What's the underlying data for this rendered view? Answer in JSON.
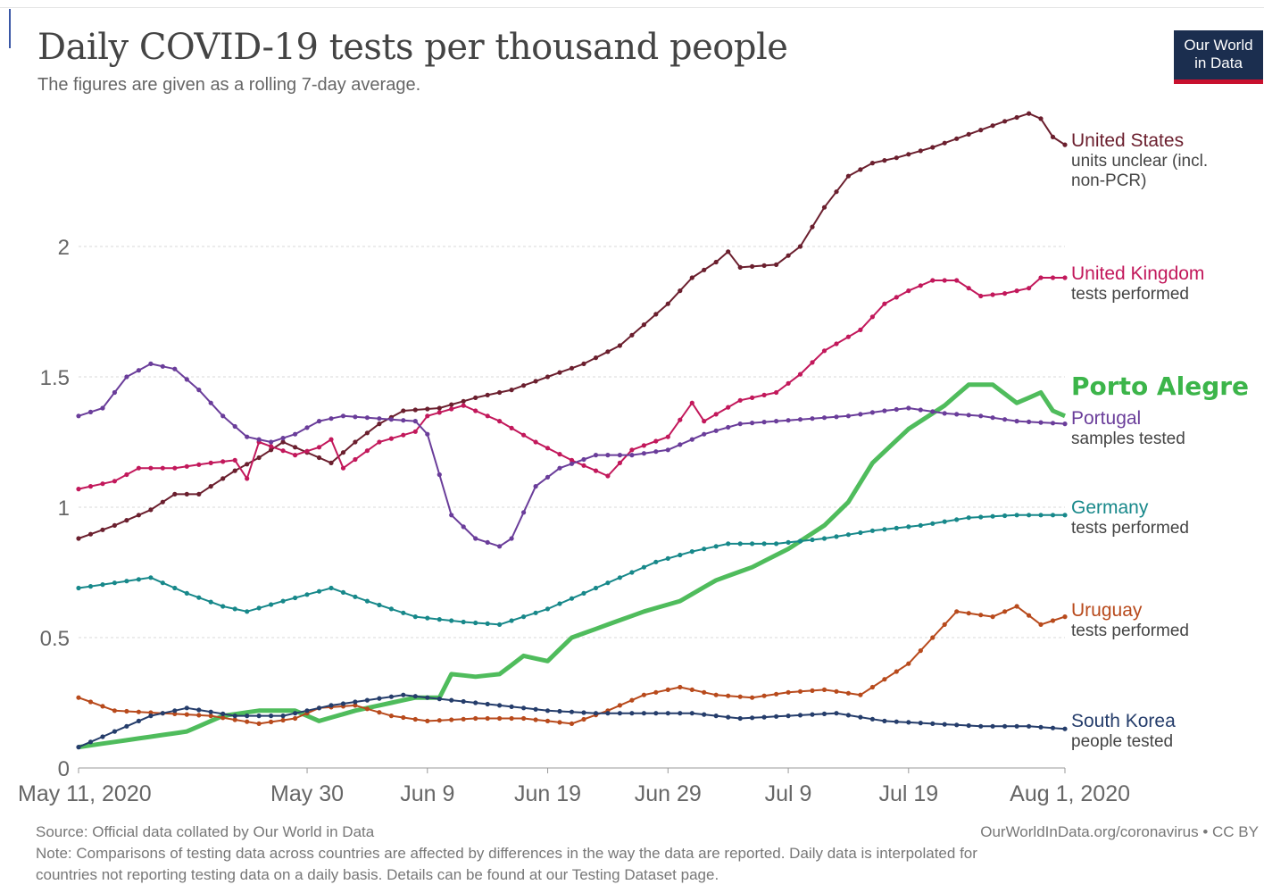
{
  "header": {
    "title": "Daily COVID-19 tests per thousand people",
    "subtitle": "The figures are given as a rolling 7-day average.",
    "logo_line1": "Our World",
    "logo_line2": "in Data"
  },
  "footer": {
    "source": "Source: Official data collated by Our World in Data",
    "url": "OurWorldInData.org/coronavirus • CC BY",
    "note_line1": "Note: Comparisons of testing data across countries are affected by differences in the way the data are reported. Daily data is interpolated for",
    "note_line2": "countries not reporting testing data on a daily basis. Details can be found at our Testing Dataset page."
  },
  "chart_data": {
    "type": "line",
    "title": "Daily COVID-19 tests per thousand people",
    "subtitle": "The figures are given as a rolling 7-day average.",
    "x_axis": {
      "start": "2020-05-11",
      "end": "2020-08-01",
      "tick_dates": [
        "2020-05-11",
        "2020-05-30",
        "2020-06-09",
        "2020-06-19",
        "2020-06-29",
        "2020-07-09",
        "2020-07-19",
        "2020-08-01"
      ],
      "tick_labels": [
        "May 11, 2020",
        "May 30",
        "Jun 9",
        "Jun 19",
        "Jun 29",
        "Jul 9",
        "Jul 19",
        "Aug 1, 2020"
      ]
    },
    "y_axis": {
      "ylim": [
        0,
        2.45
      ],
      "ticks": [
        0,
        0.5,
        1,
        1.5,
        2
      ],
      "tick_labels": [
        "0",
        "0.5",
        "1",
        "1.5",
        "2"
      ],
      "grid": "dotted horizontal"
    },
    "series": [
      {
        "name": "United States",
        "sublabel": "units unclear (incl. non-PCR)",
        "color": "#6b1f2e",
        "points": [
          [
            "2020-05-11",
            0.88
          ],
          [
            "2020-05-14",
            0.93
          ],
          [
            "2020-05-17",
            0.99
          ],
          [
            "2020-05-19",
            1.05
          ],
          [
            "2020-05-21",
            1.05
          ],
          [
            "2020-05-24",
            1.14
          ],
          [
            "2020-05-26",
            1.19
          ],
          [
            "2020-05-28",
            1.25
          ],
          [
            "2020-05-30",
            1.21
          ],
          [
            "2020-06-01",
            1.17
          ],
          [
            "2020-06-03",
            1.25
          ],
          [
            "2020-06-05",
            1.32
          ],
          [
            "2020-06-07",
            1.37
          ],
          [
            "2020-06-10",
            1.38
          ],
          [
            "2020-06-13",
            1.42
          ],
          [
            "2020-06-16",
            1.45
          ],
          [
            "2020-06-19",
            1.5
          ],
          [
            "2020-06-22",
            1.55
          ],
          [
            "2020-06-25",
            1.62
          ],
          [
            "2020-06-27",
            1.7
          ],
          [
            "2020-06-29",
            1.78
          ],
          [
            "2020-07-01",
            1.88
          ],
          [
            "2020-07-03",
            1.94
          ],
          [
            "2020-07-04",
            1.98
          ],
          [
            "2020-07-05",
            1.92
          ],
          [
            "2020-07-08",
            1.93
          ],
          [
            "2020-07-10",
            2.0
          ],
          [
            "2020-07-12",
            2.15
          ],
          [
            "2020-07-14",
            2.27
          ],
          [
            "2020-07-16",
            2.32
          ],
          [
            "2020-07-18",
            2.34
          ],
          [
            "2020-07-21",
            2.38
          ],
          [
            "2020-07-24",
            2.43
          ],
          [
            "2020-07-27",
            2.48
          ],
          [
            "2020-07-29",
            2.51
          ],
          [
            "2020-07-30",
            2.49
          ],
          [
            "2020-07-31",
            2.42
          ],
          [
            "2020-08-01",
            2.39
          ]
        ]
      },
      {
        "name": "United Kingdom",
        "sublabel": "tests performed",
        "color": "#c2185b",
        "points": [
          [
            "2020-05-11",
            1.07
          ],
          [
            "2020-05-14",
            1.1
          ],
          [
            "2020-05-16",
            1.15
          ],
          [
            "2020-05-19",
            1.15
          ],
          [
            "2020-05-22",
            1.17
          ],
          [
            "2020-05-24",
            1.18
          ],
          [
            "2020-05-25",
            1.11
          ],
          [
            "2020-05-26",
            1.25
          ],
          [
            "2020-05-29",
            1.2
          ],
          [
            "2020-05-31",
            1.23
          ],
          [
            "2020-06-01",
            1.26
          ],
          [
            "2020-06-02",
            1.15
          ],
          [
            "2020-06-05",
            1.25
          ],
          [
            "2020-06-08",
            1.29
          ],
          [
            "2020-06-09",
            1.35
          ],
          [
            "2020-06-12",
            1.39
          ],
          [
            "2020-06-15",
            1.33
          ],
          [
            "2020-06-18",
            1.25
          ],
          [
            "2020-06-21",
            1.18
          ],
          [
            "2020-06-24",
            1.12
          ],
          [
            "2020-06-26",
            1.22
          ],
          [
            "2020-06-29",
            1.27
          ],
          [
            "2020-07-01",
            1.4
          ],
          [
            "2020-07-02",
            1.33
          ],
          [
            "2020-07-05",
            1.41
          ],
          [
            "2020-07-08",
            1.44
          ],
          [
            "2020-07-10",
            1.51
          ],
          [
            "2020-07-12",
            1.6
          ],
          [
            "2020-07-15",
            1.68
          ],
          [
            "2020-07-17",
            1.78
          ],
          [
            "2020-07-19",
            1.83
          ],
          [
            "2020-07-21",
            1.87
          ],
          [
            "2020-07-23",
            1.87
          ],
          [
            "2020-07-25",
            1.81
          ],
          [
            "2020-07-27",
            1.82
          ],
          [
            "2020-07-29",
            1.84
          ],
          [
            "2020-07-30",
            1.88
          ],
          [
            "2020-08-01",
            1.88
          ]
        ]
      },
      {
        "name": "Porto Alegre",
        "sublabel": "",
        "color": "#3cb54a",
        "points": [
          [
            "2020-05-11",
            0.08
          ],
          [
            "2020-05-14",
            0.1
          ],
          [
            "2020-05-17",
            0.12
          ],
          [
            "2020-05-20",
            0.14
          ],
          [
            "2020-05-23",
            0.2
          ],
          [
            "2020-05-26",
            0.22
          ],
          [
            "2020-05-29",
            0.22
          ],
          [
            "2020-05-31",
            0.18
          ],
          [
            "2020-06-03",
            0.22
          ],
          [
            "2020-06-06",
            0.25
          ],
          [
            "2020-06-08",
            0.27
          ],
          [
            "2020-06-10",
            0.27
          ],
          [
            "2020-06-11",
            0.36
          ],
          [
            "2020-06-13",
            0.35
          ],
          [
            "2020-06-15",
            0.36
          ],
          [
            "2020-06-17",
            0.43
          ],
          [
            "2020-06-19",
            0.41
          ],
          [
            "2020-06-21",
            0.5
          ],
          [
            "2020-06-24",
            0.55
          ],
          [
            "2020-06-27",
            0.6
          ],
          [
            "2020-06-30",
            0.64
          ],
          [
            "2020-07-03",
            0.72
          ],
          [
            "2020-07-06",
            0.77
          ],
          [
            "2020-07-09",
            0.84
          ],
          [
            "2020-07-12",
            0.93
          ],
          [
            "2020-07-14",
            1.02
          ],
          [
            "2020-07-16",
            1.17
          ],
          [
            "2020-07-19",
            1.3
          ],
          [
            "2020-07-22",
            1.39
          ],
          [
            "2020-07-24",
            1.47
          ],
          [
            "2020-07-26",
            1.47
          ],
          [
            "2020-07-28",
            1.4
          ],
          [
            "2020-07-30",
            1.44
          ],
          [
            "2020-07-31",
            1.37
          ],
          [
            "2020-08-01",
            1.35
          ]
        ]
      },
      {
        "name": "Portugal",
        "sublabel": "samples tested",
        "color": "#6a3d9a",
        "points": [
          [
            "2020-05-11",
            1.35
          ],
          [
            "2020-05-13",
            1.38
          ],
          [
            "2020-05-15",
            1.5
          ],
          [
            "2020-05-17",
            1.55
          ],
          [
            "2020-05-19",
            1.53
          ],
          [
            "2020-05-21",
            1.45
          ],
          [
            "2020-05-23",
            1.35
          ],
          [
            "2020-05-25",
            1.27
          ],
          [
            "2020-05-27",
            1.25
          ],
          [
            "2020-05-29",
            1.28
          ],
          [
            "2020-05-31",
            1.33
          ],
          [
            "2020-06-02",
            1.35
          ],
          [
            "2020-06-05",
            1.34
          ],
          [
            "2020-06-08",
            1.33
          ],
          [
            "2020-06-09",
            1.28
          ],
          [
            "2020-06-11",
            0.97
          ],
          [
            "2020-06-13",
            0.88
          ],
          [
            "2020-06-15",
            0.85
          ],
          [
            "2020-06-16",
            0.88
          ],
          [
            "2020-06-18",
            1.08
          ],
          [
            "2020-06-20",
            1.15
          ],
          [
            "2020-06-23",
            1.2
          ],
          [
            "2020-06-26",
            1.2
          ],
          [
            "2020-06-29",
            1.22
          ],
          [
            "2020-07-02",
            1.28
          ],
          [
            "2020-07-05",
            1.32
          ],
          [
            "2020-07-08",
            1.33
          ],
          [
            "2020-07-11",
            1.34
          ],
          [
            "2020-07-14",
            1.35
          ],
          [
            "2020-07-17",
            1.37
          ],
          [
            "2020-07-19",
            1.38
          ],
          [
            "2020-07-22",
            1.36
          ],
          [
            "2020-07-25",
            1.35
          ],
          [
            "2020-07-28",
            1.33
          ],
          [
            "2020-08-01",
            1.32
          ]
        ]
      },
      {
        "name": "Germany",
        "sublabel": "tests performed",
        "color": "#17888a",
        "points": [
          [
            "2020-05-11",
            0.69
          ],
          [
            "2020-05-14",
            0.71
          ],
          [
            "2020-05-17",
            0.73
          ],
          [
            "2020-05-20",
            0.67
          ],
          [
            "2020-05-23",
            0.62
          ],
          [
            "2020-05-25",
            0.6
          ],
          [
            "2020-05-28",
            0.64
          ],
          [
            "2020-06-01",
            0.69
          ],
          [
            "2020-06-04",
            0.64
          ],
          [
            "2020-06-08",
            0.58
          ],
          [
            "2020-06-12",
            0.56
          ],
          [
            "2020-06-15",
            0.55
          ],
          [
            "2020-06-19",
            0.61
          ],
          [
            "2020-06-22",
            0.67
          ],
          [
            "2020-06-25",
            0.73
          ],
          [
            "2020-06-28",
            0.79
          ],
          [
            "2020-07-01",
            0.83
          ],
          [
            "2020-07-04",
            0.86
          ],
          [
            "2020-07-08",
            0.86
          ],
          [
            "2020-07-12",
            0.88
          ],
          [
            "2020-07-16",
            0.91
          ],
          [
            "2020-07-20",
            0.93
          ],
          [
            "2020-07-24",
            0.96
          ],
          [
            "2020-07-28",
            0.97
          ],
          [
            "2020-08-01",
            0.97
          ]
        ]
      },
      {
        "name": "Uruguay",
        "sublabel": "tests performed",
        "color": "#b84a1c",
        "points": [
          [
            "2020-05-11",
            0.27
          ],
          [
            "2020-05-14",
            0.22
          ],
          [
            "2020-05-18",
            0.21
          ],
          [
            "2020-05-22",
            0.2
          ],
          [
            "2020-05-26",
            0.17
          ],
          [
            "2020-05-29",
            0.19
          ],
          [
            "2020-05-31",
            0.23
          ],
          [
            "2020-06-03",
            0.24
          ],
          [
            "2020-06-06",
            0.2
          ],
          [
            "2020-06-09",
            0.18
          ],
          [
            "2020-06-13",
            0.19
          ],
          [
            "2020-06-17",
            0.19
          ],
          [
            "2020-06-21",
            0.17
          ],
          [
            "2020-06-24",
            0.22
          ],
          [
            "2020-06-27",
            0.28
          ],
          [
            "2020-06-30",
            0.31
          ],
          [
            "2020-07-03",
            0.28
          ],
          [
            "2020-07-06",
            0.27
          ],
          [
            "2020-07-09",
            0.29
          ],
          [
            "2020-07-12",
            0.3
          ],
          [
            "2020-07-15",
            0.28
          ],
          [
            "2020-07-19",
            0.4
          ],
          [
            "2020-07-21",
            0.5
          ],
          [
            "2020-07-23",
            0.6
          ],
          [
            "2020-07-26",
            0.58
          ],
          [
            "2020-07-28",
            0.62
          ],
          [
            "2020-07-30",
            0.55
          ],
          [
            "2020-08-01",
            0.58
          ]
        ]
      },
      {
        "name": "South Korea",
        "sublabel": "people tested",
        "color": "#253d6b",
        "points": [
          [
            "2020-05-11",
            0.08
          ],
          [
            "2020-05-14",
            0.14
          ],
          [
            "2020-05-17",
            0.2
          ],
          [
            "2020-05-20",
            0.23
          ],
          [
            "2020-05-24",
            0.2
          ],
          [
            "2020-05-28",
            0.2
          ],
          [
            "2020-06-01",
            0.24
          ],
          [
            "2020-06-04",
            0.26
          ],
          [
            "2020-06-07",
            0.28
          ],
          [
            "2020-06-11",
            0.26
          ],
          [
            "2020-06-15",
            0.24
          ],
          [
            "2020-06-19",
            0.22
          ],
          [
            "2020-06-23",
            0.21
          ],
          [
            "2020-06-27",
            0.21
          ],
          [
            "2020-07-01",
            0.21
          ],
          [
            "2020-07-05",
            0.19
          ],
          [
            "2020-07-09",
            0.2
          ],
          [
            "2020-07-13",
            0.21
          ],
          [
            "2020-07-17",
            0.18
          ],
          [
            "2020-07-21",
            0.17
          ],
          [
            "2020-07-25",
            0.16
          ],
          [
            "2020-07-29",
            0.16
          ],
          [
            "2020-08-01",
            0.15
          ]
        ]
      }
    ]
  }
}
